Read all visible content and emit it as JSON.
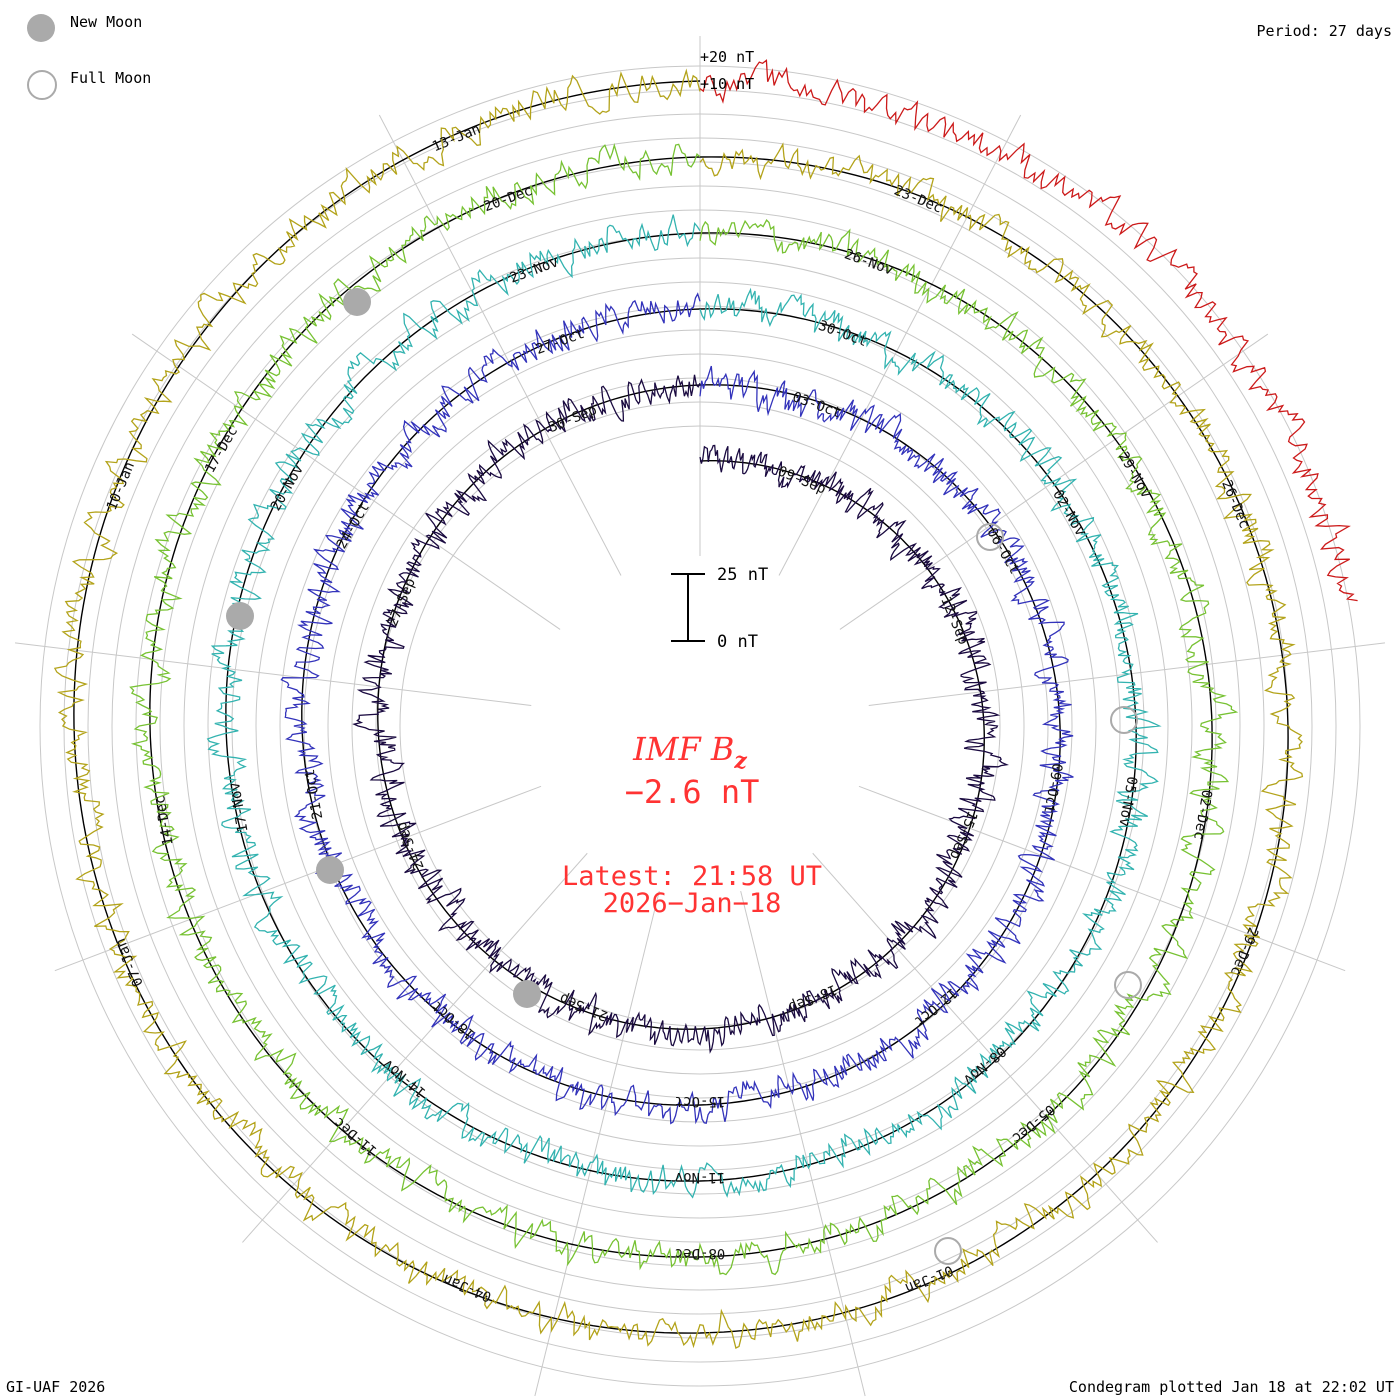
{
  "legend": {
    "new_moon_label": "New Moon",
    "full_moon_label": "Full Moon",
    "new_moon_color": "#aaaaaa",
    "full_moon_color": "#aaaaaa"
  },
  "header": {
    "period": "Period: 27 days"
  },
  "footer": {
    "credit": "GI-UAF 2026",
    "plotted": "Condegram plotted Jan 18 at 22:02 UT"
  },
  "center": {
    "title_main": "IMF B",
    "title_sub": "z",
    "value": "−2.6 nT",
    "latest": "Latest: 21:58 UT",
    "date": "2026−Jan−18",
    "color": "#ff3333"
  },
  "chart_data": {
    "type": "line",
    "title": "IMF Bz",
    "period_days": 27,
    "amplitude_ticks": [
      "+20 nT",
      "+10 nT"
    ],
    "scale_bar": {
      "top_label": "25 nT",
      "bottom_label": "0 nT",
      "span_nT": 25
    },
    "rotations": [
      {
        "index": 1,
        "color": "#1a0a40",
        "dates": [
          "09-Sep",
          "12-Sep",
          "15-Sep",
          "18-Sep",
          "21-Sep",
          "24-Sep",
          "27-Sep",
          "30-Sep"
        ]
      },
      {
        "index": 2,
        "color": "#3333bb",
        "dates": [
          "03-Oct",
          "06-Oct",
          "09-Oct",
          "12-Oct",
          "15-Oct",
          "18-Oct",
          "21-Oct",
          "24-Oct",
          "27-Oct"
        ]
      },
      {
        "index": 3,
        "color": "#33b3b0",
        "dates": [
          "30-Oct",
          "02-Nov",
          "05-Nov",
          "08-Nov",
          "11-Nov",
          "14-Nov",
          "17-Nov",
          "20-Nov",
          "23-Nov"
        ]
      },
      {
        "index": 4,
        "color": "#77c233",
        "dates": [
          "26-Nov",
          "29-Nov",
          "02-Dec",
          "05-Dec",
          "08-Dec",
          "11-Dec",
          "14-Dec",
          "17-Dec",
          "20-Dec"
        ]
      },
      {
        "index": 5,
        "color": "#b3a31a",
        "dates": [
          "23-Dec",
          "26-Dec",
          "29-Dec",
          "01-Jan",
          "04-Jan",
          "07-Jan",
          "10-Jan",
          "13-Jan"
        ]
      },
      {
        "index": 6,
        "color": "#cc1a1a",
        "dates": []
      }
    ],
    "latest_value_nT": -2.6,
    "unit": "nT"
  }
}
